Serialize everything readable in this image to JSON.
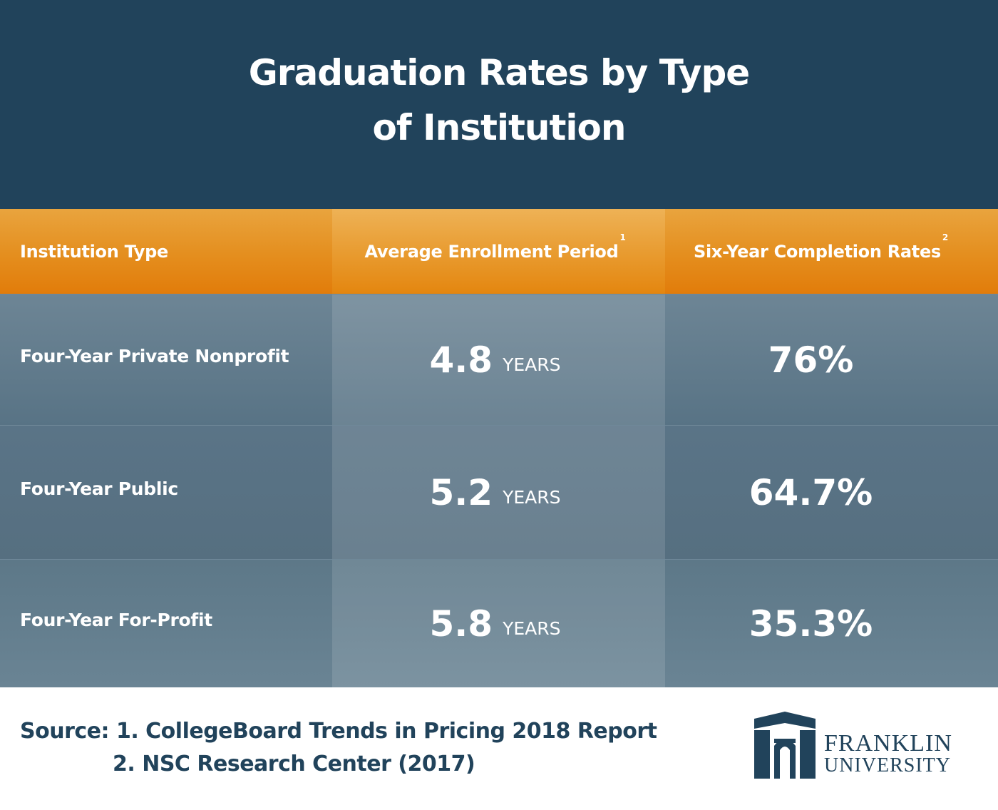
{
  "title": "Graduation Rates by Type of Institution",
  "columns": [
    {
      "label": "Institution Type",
      "sup": ""
    },
    {
      "label": "Average Enrollment Period",
      "sup": "1"
    },
    {
      "label": "Six-Year Completion Rates",
      "sup": "2"
    }
  ],
  "rows": [
    {
      "type": "Four-Year Private Nonprofit",
      "period": "4.8",
      "unit": "YEARS",
      "rate": "76%"
    },
    {
      "type": "Four-Year Public",
      "period": "5.2",
      "unit": "YEARS",
      "rate": "64.7%"
    },
    {
      "type": "Four-Year For-Profit",
      "period": "5.8",
      "unit": "YEARS",
      "rate": "35.3%"
    }
  ],
  "footer": {
    "source_line1": "Source: 1. CollegeBoard Trends in Pricing 2018 Report",
    "source_line2": "2. NSC Research Center (2017)"
  },
  "logo": {
    "line1": "FRANKLIN",
    "line2": "UNIVERSITY",
    "icon": "franklin-arch-icon"
  },
  "colors": {
    "header_bg": "#21435b",
    "accent_orange": "#e48e1e",
    "row_bg": "#5f798a"
  },
  "chart_data": {
    "type": "table",
    "title": "Graduation Rates by Type of Institution",
    "columns": [
      "Institution Type",
      "Average Enrollment Period",
      "Six-Year Completion Rates"
    ],
    "categories": [
      "Four-Year Private Nonprofit",
      "Four-Year Public",
      "Four-Year For-Profit"
    ],
    "series": [
      {
        "name": "Average Enrollment Period",
        "values": [
          4.8,
          5.2,
          5.8
        ]
      },
      {
        "name": "Six-Year Completion Rates",
        "values": [
          76,
          64.7,
          35.3
        ]
      }
    ]
  }
}
